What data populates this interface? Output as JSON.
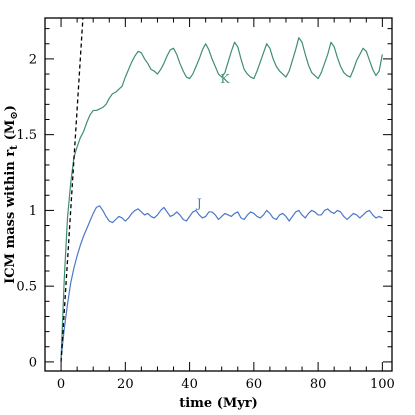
{
  "chart_data": {
    "type": "line",
    "title": "",
    "xlabel": "time (Myr)",
    "ylabel_main": "ICM mass within r",
    "ylabel_sub": "t",
    "ylabel_unit": "(M",
    "ylabel_unit_sub": "⊙",
    "ylabel_close": ")",
    "xlim": [
      -5,
      103
    ],
    "ylim": [
      -0.06,
      2.27
    ],
    "xticks": [
      0,
      20,
      40,
      60,
      80,
      100
    ],
    "xtick_labels": [
      "0",
      "20",
      "40",
      "60",
      "80",
      "100"
    ],
    "yticks": [
      0,
      0.5,
      1,
      1.5,
      2
    ],
    "ytick_labels": [
      "0",
      "0.5",
      "1",
      "1.5",
      "2"
    ],
    "grid": false,
    "series": [
      {
        "name": "K",
        "color": "#3f8f6f",
        "label_at": [
          51,
          1.84
        ],
        "x": [
          0,
          1,
          2,
          3,
          4,
          5,
          6,
          7,
          8,
          9,
          10,
          11,
          12,
          13,
          14,
          15,
          16,
          17,
          18,
          19,
          20,
          21,
          22,
          23,
          24,
          25,
          26,
          27,
          28,
          29,
          30,
          31,
          32,
          33,
          34,
          35,
          36,
          37,
          38,
          39,
          40,
          41,
          42,
          43,
          44,
          45,
          46,
          47,
          48,
          49,
          50,
          51,
          52,
          53,
          54,
          55,
          56,
          57,
          58,
          59,
          60,
          61,
          62,
          63,
          64,
          65,
          66,
          67,
          68,
          69,
          70,
          71,
          72,
          73,
          74,
          75,
          76,
          77,
          78,
          79,
          80,
          81,
          82,
          83,
          84,
          85,
          86,
          87,
          88,
          89,
          90,
          91,
          92,
          93,
          94,
          95,
          96,
          97,
          98,
          99,
          100
        ],
        "y": [
          0.02,
          0.55,
          0.95,
          1.18,
          1.35,
          1.42,
          1.48,
          1.52,
          1.58,
          1.63,
          1.66,
          1.66,
          1.67,
          1.68,
          1.7,
          1.74,
          1.77,
          1.78,
          1.8,
          1.82,
          1.88,
          1.93,
          1.98,
          2.02,
          2.05,
          2.04,
          2.0,
          1.97,
          1.93,
          1.92,
          1.9,
          1.93,
          1.97,
          2.02,
          2.06,
          2.07,
          2.03,
          1.97,
          1.92,
          1.88,
          1.87,
          1.9,
          1.95,
          2.0,
          2.06,
          2.1,
          2.06,
          2.0,
          1.95,
          1.9,
          1.88,
          1.91,
          1.98,
          2.05,
          2.11,
          2.08,
          2.0,
          1.93,
          1.9,
          1.88,
          1.87,
          1.92,
          1.98,
          2.04,
          2.1,
          2.07,
          2.0,
          1.95,
          1.92,
          1.9,
          1.88,
          1.92,
          1.99,
          2.06,
          2.14,
          2.11,
          2.03,
          1.96,
          1.91,
          1.89,
          1.87,
          1.91,
          1.97,
          2.03,
          2.11,
          2.08,
          2.01,
          1.95,
          1.91,
          1.89,
          1.88,
          1.93,
          1.99,
          2.03,
          2.07,
          2.05,
          1.99,
          1.93,
          1.89,
          1.92,
          2.03
        ]
      },
      {
        "name": "J",
        "color": "#4a78c8",
        "label_at": [
          43,
          1.02
        ],
        "x": [
          0,
          1,
          2,
          3,
          4,
          5,
          6,
          7,
          8,
          9,
          10,
          11,
          12,
          13,
          14,
          15,
          16,
          17,
          18,
          19,
          20,
          21,
          22,
          23,
          24,
          25,
          26,
          27,
          28,
          29,
          30,
          31,
          32,
          33,
          34,
          35,
          36,
          37,
          38,
          39,
          40,
          41,
          42,
          43,
          44,
          45,
          46,
          47,
          48,
          49,
          50,
          51,
          52,
          53,
          54,
          55,
          56,
          57,
          58,
          59,
          60,
          61,
          62,
          63,
          64,
          65,
          66,
          67,
          68,
          69,
          70,
          71,
          72,
          73,
          74,
          75,
          76,
          77,
          78,
          79,
          80,
          81,
          82,
          83,
          84,
          85,
          86,
          87,
          88,
          89,
          90,
          91,
          92,
          93,
          94,
          95,
          96,
          97,
          98,
          99,
          100
        ],
        "y": [
          0.02,
          0.22,
          0.38,
          0.52,
          0.62,
          0.7,
          0.77,
          0.83,
          0.88,
          0.93,
          0.98,
          1.02,
          1.03,
          1.0,
          0.96,
          0.93,
          0.92,
          0.94,
          0.96,
          0.95,
          0.93,
          0.95,
          0.98,
          1.0,
          1.01,
          0.99,
          0.97,
          0.98,
          0.96,
          0.95,
          0.97,
          1.0,
          1.02,
          0.99,
          0.96,
          0.97,
          0.99,
          0.97,
          0.94,
          0.93,
          0.96,
          0.99,
          1.0,
          0.97,
          0.95,
          0.96,
          0.99,
          0.99,
          0.97,
          0.94,
          0.96,
          0.98,
          0.97,
          0.96,
          0.98,
          0.99,
          0.95,
          0.94,
          0.97,
          0.99,
          0.98,
          0.96,
          0.95,
          0.97,
          1.0,
          0.98,
          0.95,
          0.94,
          0.97,
          0.98,
          0.96,
          0.93,
          0.96,
          0.99,
          1.0,
          0.97,
          0.95,
          0.98,
          1.0,
          0.99,
          0.97,
          0.97,
          1.0,
          1.01,
          0.99,
          0.98,
          1.0,
          0.99,
          0.96,
          0.94,
          0.96,
          0.98,
          0.97,
          0.95,
          0.97,
          0.99,
          1.0,
          0.97,
          0.95,
          0.96,
          0.95
        ]
      }
    ],
    "reference_line": {
      "style": "dashed",
      "color": "#000000",
      "x": [
        0,
        6.8
      ],
      "y": [
        0,
        2.27
      ]
    }
  }
}
